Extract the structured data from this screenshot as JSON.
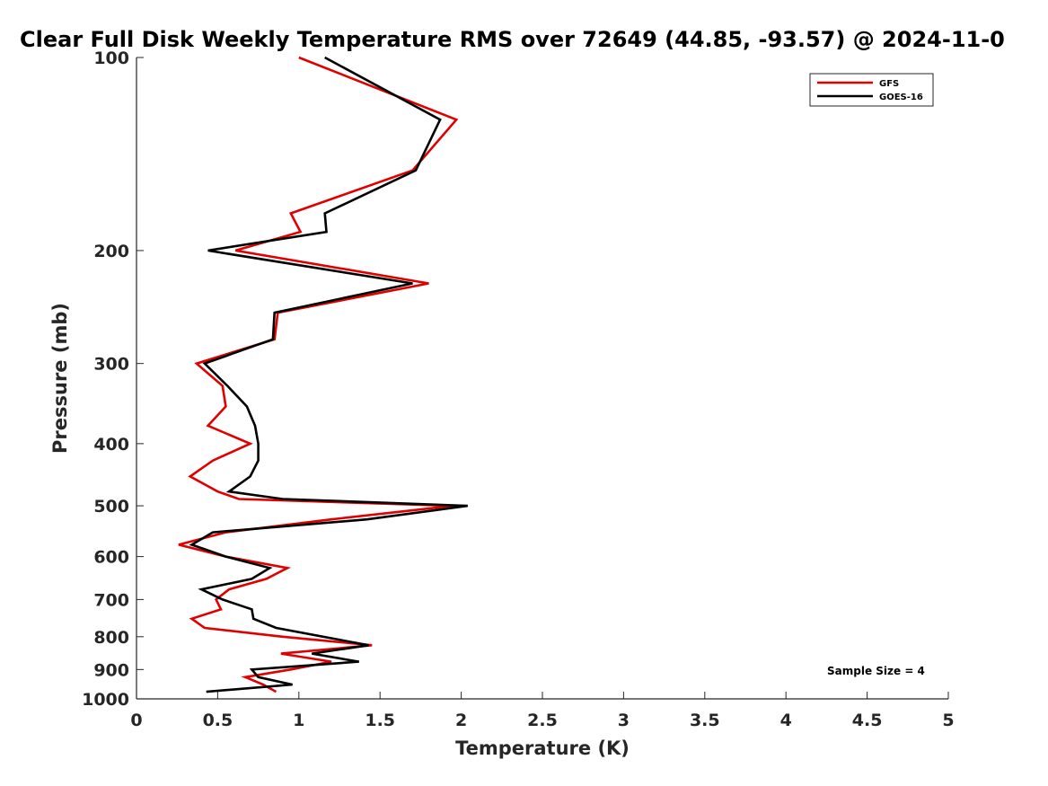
{
  "chart_data": {
    "type": "line",
    "title": "Clear Full Disk Weekly Temperature RMS over 72649 (44.85, -93.57) @ 2024-11-0",
    "xlabel": "Temperature (K)",
    "ylabel": "Pressure (mb)",
    "xlim": [
      0,
      5
    ],
    "ylim": [
      100,
      1000
    ],
    "y_scale": "log",
    "y_reversed": true,
    "grid": false,
    "legend_position": "top-right",
    "x_ticks": [
      {
        "value": 0,
        "label": "0"
      },
      {
        "value": 0.5,
        "label": "0.5"
      },
      {
        "value": 1,
        "label": "1"
      },
      {
        "value": 1.5,
        "label": "1.5"
      },
      {
        "value": 2,
        "label": "2"
      },
      {
        "value": 2.5,
        "label": "2.5"
      },
      {
        "value": 3,
        "label": "3"
      },
      {
        "value": 3.5,
        "label": "3.5"
      },
      {
        "value": 4,
        "label": "4"
      },
      {
        "value": 4.5,
        "label": "4.5"
      },
      {
        "value": 5,
        "label": "5"
      }
    ],
    "y_ticks": [
      {
        "value": 100,
        "label": "100"
      },
      {
        "value": 200,
        "label": "200"
      },
      {
        "value": 300,
        "label": "300"
      },
      {
        "value": 400,
        "label": "400"
      },
      {
        "value": 500,
        "label": "500"
      },
      {
        "value": 600,
        "label": "600"
      },
      {
        "value": 700,
        "label": "700"
      },
      {
        "value": 800,
        "label": "800"
      },
      {
        "value": 900,
        "label": "900"
      },
      {
        "value": 1000,
        "label": "1000"
      }
    ],
    "series": [
      {
        "name": "GFS",
        "color": "#e00000",
        "points": [
          {
            "t": 1.0,
            "p": 100
          },
          {
            "t": 1.97,
            "p": 125
          },
          {
            "t": 1.7,
            "p": 150
          },
          {
            "t": 0.95,
            "p": 175
          },
          {
            "t": 1.01,
            "p": 187
          },
          {
            "t": 0.61,
            "p": 200
          },
          {
            "t": 1.8,
            "p": 225
          },
          {
            "t": 0.87,
            "p": 250
          },
          {
            "t": 0.85,
            "p": 275
          },
          {
            "t": 0.37,
            "p": 300
          },
          {
            "t": 0.53,
            "p": 325
          },
          {
            "t": 0.55,
            "p": 350
          },
          {
            "t": 0.44,
            "p": 375
          },
          {
            "t": 0.7,
            "p": 400
          },
          {
            "t": 0.47,
            "p": 425
          },
          {
            "t": 0.33,
            "p": 450
          },
          {
            "t": 0.5,
            "p": 475
          },
          {
            "t": 0.63,
            "p": 488
          },
          {
            "t": 1.95,
            "p": 500
          },
          {
            "t": 1.2,
            "p": 525
          },
          {
            "t": 0.55,
            "p": 550
          },
          {
            "t": 0.26,
            "p": 575
          },
          {
            "t": 0.55,
            "p": 600
          },
          {
            "t": 0.93,
            "p": 625
          },
          {
            "t": 0.8,
            "p": 650
          },
          {
            "t": 0.57,
            "p": 675
          },
          {
            "t": 0.49,
            "p": 700
          },
          {
            "t": 0.52,
            "p": 725
          },
          {
            "t": 0.34,
            "p": 750
          },
          {
            "t": 0.42,
            "p": 775
          },
          {
            "t": 0.9,
            "p": 800
          },
          {
            "t": 1.45,
            "p": 825
          },
          {
            "t": 0.89,
            "p": 850
          },
          {
            "t": 1.2,
            "p": 875
          },
          {
            "t": 0.95,
            "p": 900
          },
          {
            "t": 0.67,
            "p": 925
          },
          {
            "t": 0.78,
            "p": 950
          },
          {
            "t": 0.86,
            "p": 975
          }
        ]
      },
      {
        "name": "GOES-16",
        "color": "#000000",
        "points": [
          {
            "t": 1.16,
            "p": 100
          },
          {
            "t": 1.87,
            "p": 125
          },
          {
            "t": 1.72,
            "p": 150
          },
          {
            "t": 1.16,
            "p": 175
          },
          {
            "t": 1.17,
            "p": 187
          },
          {
            "t": 0.44,
            "p": 200
          },
          {
            "t": 1.7,
            "p": 225
          },
          {
            "t": 0.85,
            "p": 250
          },
          {
            "t": 0.84,
            "p": 275
          },
          {
            "t": 0.42,
            "p": 300
          },
          {
            "t": 0.56,
            "p": 325
          },
          {
            "t": 0.68,
            "p": 350
          },
          {
            "t": 0.73,
            "p": 375
          },
          {
            "t": 0.75,
            "p": 400
          },
          {
            "t": 0.75,
            "p": 425
          },
          {
            "t": 0.7,
            "p": 450
          },
          {
            "t": 0.57,
            "p": 475
          },
          {
            "t": 0.9,
            "p": 488
          },
          {
            "t": 2.04,
            "p": 500
          },
          {
            "t": 1.42,
            "p": 525
          },
          {
            "t": 0.47,
            "p": 550
          },
          {
            "t": 0.34,
            "p": 575
          },
          {
            "t": 0.55,
            "p": 600
          },
          {
            "t": 0.82,
            "p": 625
          },
          {
            "t": 0.71,
            "p": 650
          },
          {
            "t": 0.4,
            "p": 675
          },
          {
            "t": 0.53,
            "p": 700
          },
          {
            "t": 0.71,
            "p": 725
          },
          {
            "t": 0.72,
            "p": 750
          },
          {
            "t": 0.86,
            "p": 775
          },
          {
            "t": 1.43,
            "p": 825
          },
          {
            "t": 1.08,
            "p": 850
          },
          {
            "t": 1.37,
            "p": 875
          },
          {
            "t": 0.71,
            "p": 900
          },
          {
            "t": 0.75,
            "p": 925
          },
          {
            "t": 0.96,
            "p": 950
          },
          {
            "t": 0.43,
            "p": 975
          }
        ]
      }
    ],
    "annotations": [
      {
        "text": "Sample Size = 4",
        "position": "bottom-right"
      }
    ]
  }
}
